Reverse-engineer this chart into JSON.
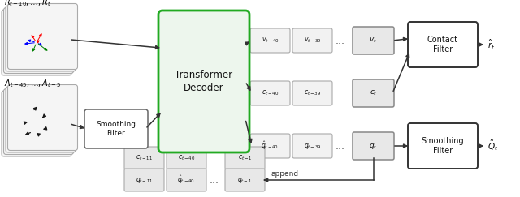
{
  "fig_width": 6.4,
  "fig_height": 2.43,
  "dpi": 100,
  "bg_color": "#ffffff",
  "imu_rot_label": "$R_{t-10},\\ldots,R_t$",
  "imu_acc_label": "$A_{t-45},\\ldots,A_{t-5}$",
  "output_rot_label": "$\\hat{r}_t$",
  "output_pose_label": "$\\tilde{Q}_t$"
}
